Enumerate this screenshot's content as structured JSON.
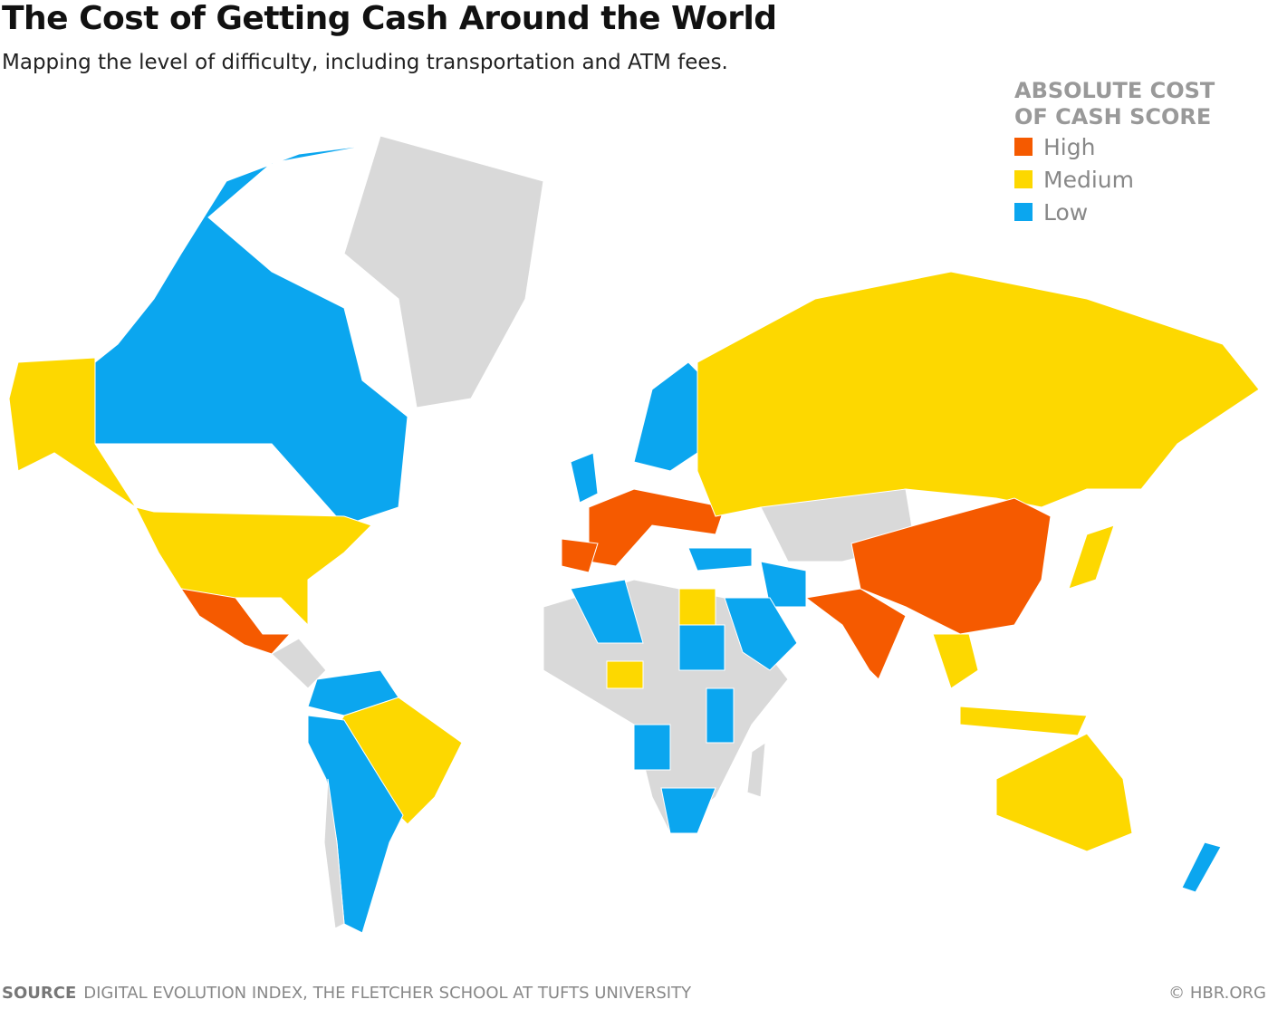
{
  "header": {
    "title": "The Cost of Getting Cash Around the World",
    "subtitle": "Mapping the level of difficulty, including transportation and ATM fees."
  },
  "legend": {
    "title": "ABSOLUTE COST OF CASH SCORE",
    "items": [
      {
        "label": "High",
        "color": "#f55a00"
      },
      {
        "label": "Medium",
        "color": "#fdd800"
      },
      {
        "label": "Low",
        "color": "#0ba6ef"
      }
    ]
  },
  "footer": {
    "source_label": "SOURCE",
    "source": "DIGITAL EVOLUTION INDEX, THE FLETCHER SCHOOL AT TUFTS UNIVERSITY",
    "credit": "© HBR.ORG"
  }
}
